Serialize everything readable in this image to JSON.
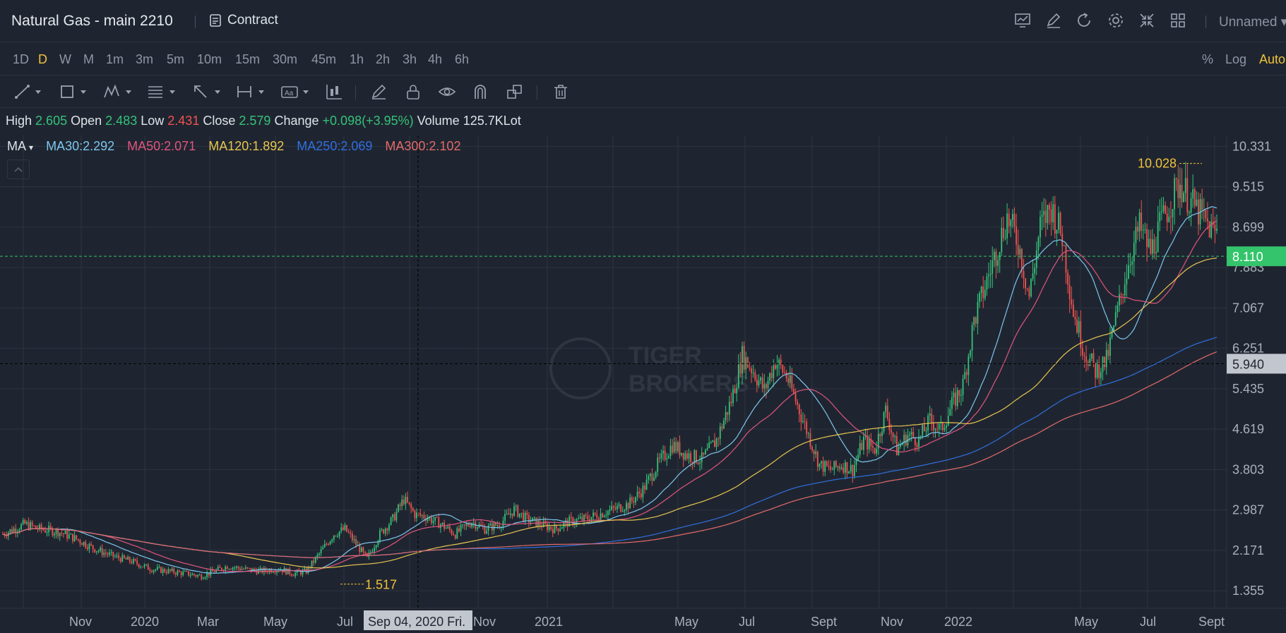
{
  "header": {
    "title": "Natural Gas - main 2210",
    "contract_label": "Contract",
    "layout_name": "Unnamed"
  },
  "periods": [
    {
      "label": "1D",
      "active": false
    },
    {
      "label": "D",
      "active": true
    },
    {
      "label": "W",
      "active": false
    },
    {
      "label": "M",
      "active": false
    },
    {
      "label": "1m",
      "active": false
    },
    {
      "label": "3m",
      "active": false
    },
    {
      "label": "5m",
      "active": false
    },
    {
      "label": "10m",
      "active": false
    },
    {
      "label": "15m",
      "active": false
    },
    {
      "label": "30m",
      "active": false
    },
    {
      "label": "45m",
      "active": false
    },
    {
      "label": "1h",
      "active": false
    },
    {
      "label": "2h",
      "active": false
    },
    {
      "label": "3h",
      "active": false
    },
    {
      "label": "4h",
      "active": false
    },
    {
      "label": "6h",
      "active": false
    }
  ],
  "scale_toggles": {
    "percent": "%",
    "log": "Log",
    "auto": "Auto"
  },
  "ohlc": {
    "high_label": "High",
    "high": "2.605",
    "open_label": "Open",
    "open": "2.483",
    "low_label": "Low",
    "low": "2.431",
    "close_label": "Close",
    "close": "2.579",
    "change_label": "Change",
    "change": "+0.098(+3.95%)",
    "volume_label": "Volume",
    "volume": "125.7KLot"
  },
  "ma_legend": {
    "indicator": "MA",
    "items": [
      {
        "text": "MA30:2.292",
        "color": "#7cc6ef"
      },
      {
        "text": "MA50:2.071",
        "color": "#e0557f"
      },
      {
        "text": "MA120:1.892",
        "color": "#e8c550"
      },
      {
        "text": "MA250:2.069",
        "color": "#2f6fe0"
      },
      {
        "text": "MA300:2.102",
        "color": "#e36a6a"
      }
    ]
  },
  "watermark": {
    "line1": "TIGER",
    "line2": "BROKERS"
  },
  "colors": {
    "up": "#35c27a",
    "down": "#ef5350",
    "accent": "#f0c23c",
    "last_price_bg": "#34c46b",
    "crosshair_bg": "#c2c6ce"
  },
  "chart_data": {
    "type": "candlestick",
    "y_axis_ticks": [
      "10.331",
      "9.515",
      "8.699",
      "7.883",
      "7.067",
      "6.251",
      "5.435",
      "4.619",
      "3.803",
      "2.987",
      "2.171",
      "1.355"
    ],
    "ylim": [
      1.0,
      10.55
    ],
    "x_axis_labels": [
      "Nov",
      "2020",
      "Mar",
      "May",
      "Jul",
      "Nov",
      "2021",
      "May",
      "Jul",
      "Sept",
      "Nov",
      "2022",
      "May",
      "Jul",
      "Sept"
    ],
    "last_price": "8.110",
    "crosshair_price": "5.940",
    "crosshair_date": "Sep 04, 2020 Fri.",
    "max_annotation": "10.028",
    "min_annotation": "1.517",
    "series": [
      {
        "name": "MA30",
        "value": "2.292"
      },
      {
        "name": "MA50",
        "value": "2.071"
      },
      {
        "name": "MA120",
        "value": "1.892"
      },
      {
        "name": "MA250",
        "value": "2.069"
      },
      {
        "name": "MA300",
        "value": "2.102"
      }
    ],
    "close_path": [
      [
        0,
        2.5
      ],
      [
        12,
        2.7
      ],
      [
        20,
        2.6
      ],
      [
        30,
        2.55
      ],
      [
        40,
        2.4
      ],
      [
        50,
        2.2
      ],
      [
        60,
        2.05
      ],
      [
        70,
        1.95
      ],
      [
        80,
        1.8
      ],
      [
        90,
        1.75
      ],
      [
        100,
        1.7
      ],
      [
        108,
        1.65
      ],
      [
        115,
        1.75
      ],
      [
        122,
        1.85
      ],
      [
        130,
        1.8
      ],
      [
        140,
        1.75
      ],
      [
        150,
        1.8
      ],
      [
        158,
        1.7
      ],
      [
        165,
        1.75
      ],
      [
        172,
        2.1
      ],
      [
        180,
        2.5
      ],
      [
        186,
        2.6
      ],
      [
        192,
        2.3
      ],
      [
        198,
        2.0
      ],
      [
        205,
        2.5
      ],
      [
        212,
        2.8
      ],
      [
        218,
        3.2
      ],
      [
        224,
        2.9
      ],
      [
        230,
        2.85
      ],
      [
        238,
        2.7
      ],
      [
        246,
        2.5
      ],
      [
        255,
        2.75
      ],
      [
        262,
        2.6
      ],
      [
        270,
        2.7
      ],
      [
        278,
        3.0
      ],
      [
        285,
        2.8
      ],
      [
        292,
        2.7
      ],
      [
        300,
        2.6
      ],
      [
        308,
        2.75
      ],
      [
        316,
        2.8
      ],
      [
        324,
        2.9
      ],
      [
        332,
        3.0
      ],
      [
        340,
        3.1
      ],
      [
        348,
        3.4
      ],
      [
        356,
        3.9
      ],
      [
        364,
        4.3
      ],
      [
        372,
        4.1
      ],
      [
        380,
        4.0
      ],
      [
        388,
        4.4
      ],
      [
        396,
        5.2
      ],
      [
        402,
        6.1
      ],
      [
        408,
        5.8
      ],
      [
        414,
        5.4
      ],
      [
        420,
        6.0
      ],
      [
        426,
        5.7
      ],
      [
        432,
        5.1
      ],
      [
        438,
        4.5
      ],
      [
        444,
        3.9
      ],
      [
        450,
        3.8
      ],
      [
        456,
        3.9
      ],
      [
        462,
        3.8
      ],
      [
        468,
        4.4
      ],
      [
        474,
        4.2
      ],
      [
        480,
        5.0
      ],
      [
        486,
        4.2
      ],
      [
        492,
        4.5
      ],
      [
        498,
        4.4
      ],
      [
        504,
        4.8
      ],
      [
        510,
        4.6
      ],
      [
        516,
        5.1
      ],
      [
        522,
        5.5
      ],
      [
        528,
        6.8
      ],
      [
        534,
        7.5
      ],
      [
        540,
        8.2
      ],
      [
        546,
        8.9
      ],
      [
        552,
        8.4
      ],
      [
        558,
        7.3
      ],
      [
        564,
        8.7
      ],
      [
        570,
        9.1
      ],
      [
        576,
        8.5
      ],
      [
        582,
        7.0
      ],
      [
        588,
        6.2
      ],
      [
        594,
        5.8
      ],
      [
        600,
        6.0
      ],
      [
        606,
        7.0
      ],
      [
        612,
        8.0
      ],
      [
        618,
        8.7
      ],
      [
        624,
        8.2
      ],
      [
        630,
        8.8
      ],
      [
        636,
        9.3
      ],
      [
        640,
        9.6
      ],
      [
        646,
        9.2
      ],
      [
        652,
        8.9
      ],
      [
        658,
        8.6
      ]
    ]
  }
}
